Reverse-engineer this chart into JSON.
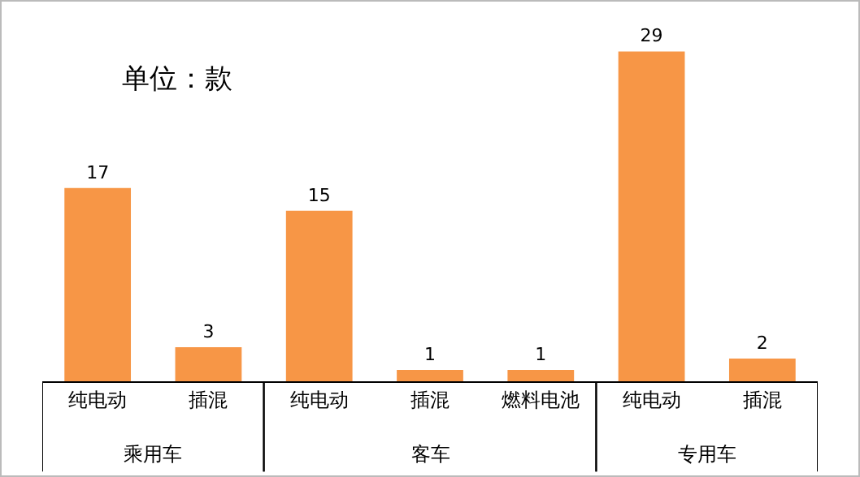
{
  "chart_data": {
    "type": "bar",
    "title": "单位：款",
    "categories": [
      "纯电动",
      "插混",
      "纯电动",
      "插混",
      "燃料电池",
      "纯电动",
      "插混"
    ],
    "values": [
      17,
      3,
      15,
      1,
      1,
      29,
      2
    ],
    "color": "#f79646",
    "data_labels": true,
    "legend": false,
    "annotations": [
      "乘用车",
      "客车",
      "专用车"
    ]
  }
}
